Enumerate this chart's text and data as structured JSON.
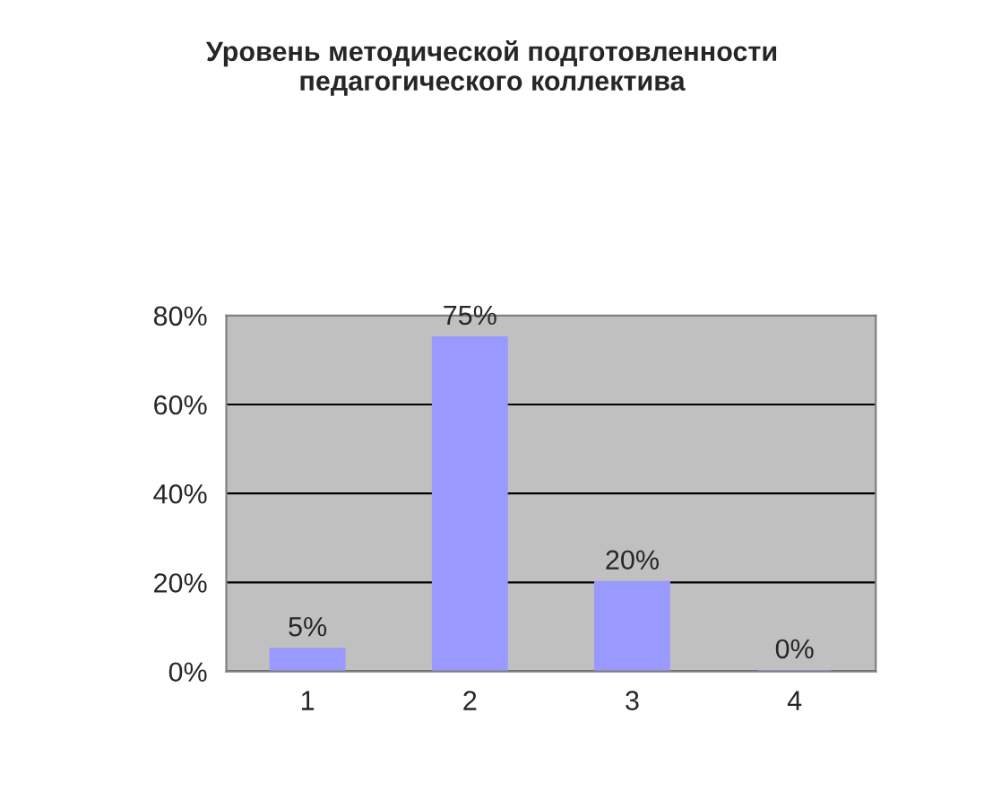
{
  "chart_data": {
    "type": "bar",
    "title": "Уровень методической подготовленности\nпедагогического коллектива",
    "categories": [
      "1",
      "2",
      "3",
      "4"
    ],
    "values": [
      5,
      75,
      20,
      0
    ],
    "value_labels": [
      "5%",
      "75%",
      "20%",
      "0%"
    ],
    "color": "#9999ff",
    "ylim": [
      0,
      80
    ],
    "yticks": [
      {
        "value": 0,
        "label": "0%"
      },
      {
        "value": 20,
        "label": "20%"
      },
      {
        "value": 40,
        "label": "40%"
      },
      {
        "value": 60,
        "label": "60%"
      },
      {
        "value": 80,
        "label": "80%"
      }
    ],
    "grid": "y"
  }
}
